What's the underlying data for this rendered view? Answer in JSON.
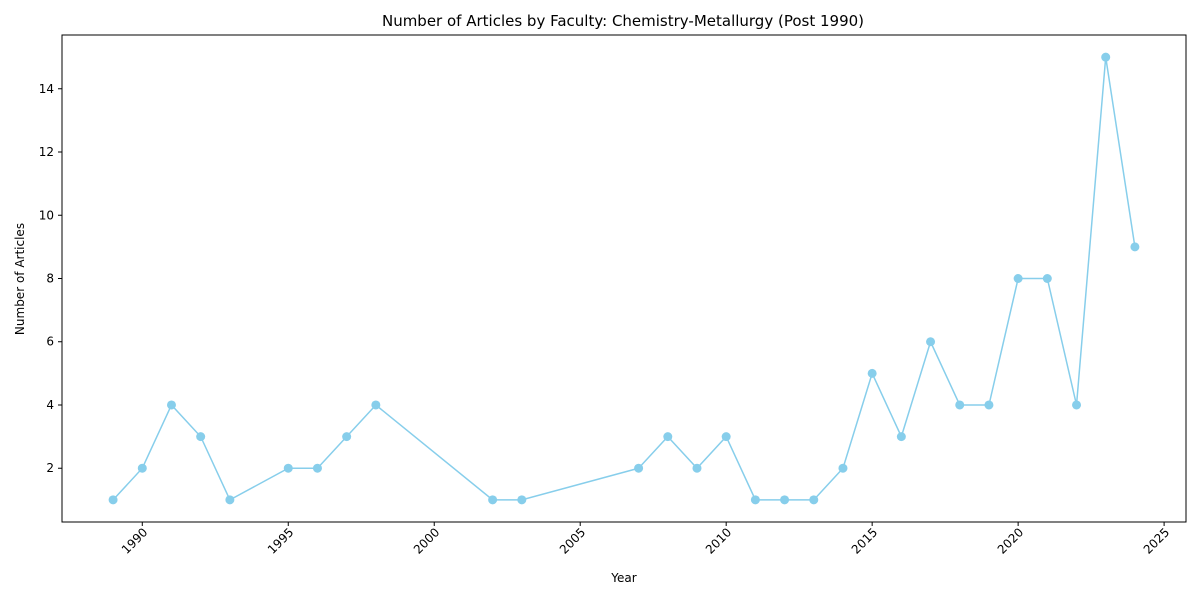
{
  "chart_data": {
    "type": "line",
    "title": "Number of Articles by Faculty: Chemistry-Metallurgy (Post 1990)",
    "xlabel": "Year",
    "ylabel": "Number of Articles",
    "x": [
      1989,
      1990,
      1991,
      1992,
      1993,
      1995,
      1996,
      1997,
      1998,
      2002,
      2003,
      2007,
      2008,
      2009,
      2010,
      2011,
      2012,
      2013,
      2014,
      2015,
      2016,
      2017,
      2018,
      2019,
      2020,
      2021,
      2022,
      2023,
      2024
    ],
    "y": [
      1,
      2,
      4,
      3,
      1,
      2,
      2,
      3,
      4,
      1,
      1,
      2,
      3,
      2,
      3,
      1,
      1,
      1,
      2,
      5,
      3,
      6,
      4,
      4,
      8,
      8,
      4,
      15,
      9
    ],
    "xlim": [
      1987.25,
      2025.75
    ],
    "ylim": [
      0.3,
      15.7
    ],
    "xticks": [
      "1990",
      "1995",
      "2000",
      "2005",
      "2010",
      "2015",
      "2020",
      "2025"
    ],
    "yticks": [
      "2",
      "4",
      "6",
      "8",
      "10",
      "12",
      "14"
    ],
    "line_color": "#87ceeb",
    "marker": "circle",
    "grid": false,
    "legend": false
  }
}
